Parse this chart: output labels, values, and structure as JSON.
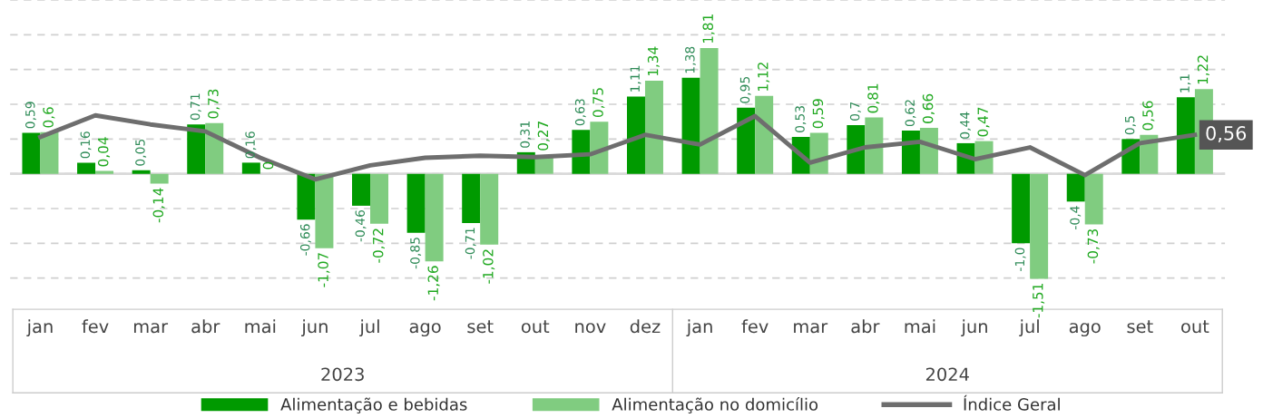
{
  "chart_data": {
    "type": "bar",
    "categories": [
      "jan",
      "fev",
      "mar",
      "abr",
      "mai",
      "jun",
      "jul",
      "ago",
      "set",
      "out",
      "nov",
      "dez",
      "jan",
      "fev",
      "mar",
      "abr",
      "mai",
      "jun",
      "jul",
      "ago",
      "set",
      "out"
    ],
    "annotations": [
      "2023",
      "2024"
    ],
    "series": [
      {
        "name": "Alimentação e bebidas",
        "color": "#009a00",
        "values": [
          0.59,
          0.16,
          0.05,
          0.71,
          0.16,
          -0.66,
          -0.46,
          -0.85,
          -0.71,
          0.31,
          0.63,
          1.11,
          1.38,
          0.95,
          0.53,
          0.7,
          0.62,
          0.44,
          -1.0,
          -0.4,
          0.5,
          1.1
        ],
        "value_labels": [
          "0,59",
          "0,16",
          "0,05",
          "0,71",
          "0,16",
          "-0,66",
          "-0,46",
          "-0,85",
          "-0,71",
          "0,31",
          "0,63",
          "1,11",
          "1,38",
          "0,95",
          "0,53",
          "0,7",
          "0,62",
          "0,44",
          "-1,0",
          "-0,4",
          "0,5",
          "1,1"
        ]
      },
      {
        "name": "Alimentação no domicílio",
        "color": "#80cc80",
        "values": [
          0.6,
          0.04,
          -0.14,
          0.73,
          0,
          -1.07,
          -0.72,
          -1.26,
          -1.02,
          0.27,
          0.75,
          1.34,
          1.81,
          1.12,
          0.59,
          0.81,
          0.66,
          0.47,
          -1.51,
          -0.73,
          0.56,
          1.22
        ],
        "value_labels": [
          "0,6",
          "0,04",
          "-0,14",
          "0,73",
          "0",
          "-1,07",
          "-0,72",
          "-1,26",
          "-1,02",
          "0,27",
          "0,75",
          "1,34",
          "1,81",
          "1,12",
          "0,59",
          "0,81",
          "0,66",
          "0,47",
          "-1,51",
          "-0,73",
          "0,56",
          "1,22"
        ]
      },
      {
        "name": "Índice Geral",
        "type": "line",
        "color": "#6e6e6e",
        "values": [
          0.53,
          0.84,
          0.71,
          0.61,
          0.23,
          -0.08,
          0.12,
          0.23,
          0.26,
          0.24,
          0.28,
          0.56,
          0.42,
          0.83,
          0.16,
          0.38,
          0.46,
          0.21,
          0.38,
          -0.02,
          0.44,
          0.56
        ],
        "value_labels": [
          null,
          null,
          null,
          null,
          null,
          null,
          null,
          null,
          null,
          null,
          null,
          null,
          null,
          null,
          null,
          null,
          null,
          null,
          null,
          null,
          null,
          "0,56"
        ]
      }
    ],
    "ylim": [
      -1.95,
      2.5
    ],
    "yticks": [
      {
        "value": -1.5,
        "label": null
      },
      {
        "value": -1.0,
        "label": null
      },
      {
        "value": -0.5,
        "label": null
      },
      {
        "value": 0,
        "label": null
      },
      {
        "value": 0.5,
        "label": null
      },
      {
        "value": 1.0,
        "label": null
      },
      {
        "value": 1.5,
        "label": null
      },
      {
        "value": 2.0,
        "label": null
      },
      {
        "value": 2.5,
        "label": null
      }
    ],
    "grid": "y",
    "legend": "bottom",
    "tick_labels": "x",
    "marker": "none",
    "line_style": "solid"
  }
}
